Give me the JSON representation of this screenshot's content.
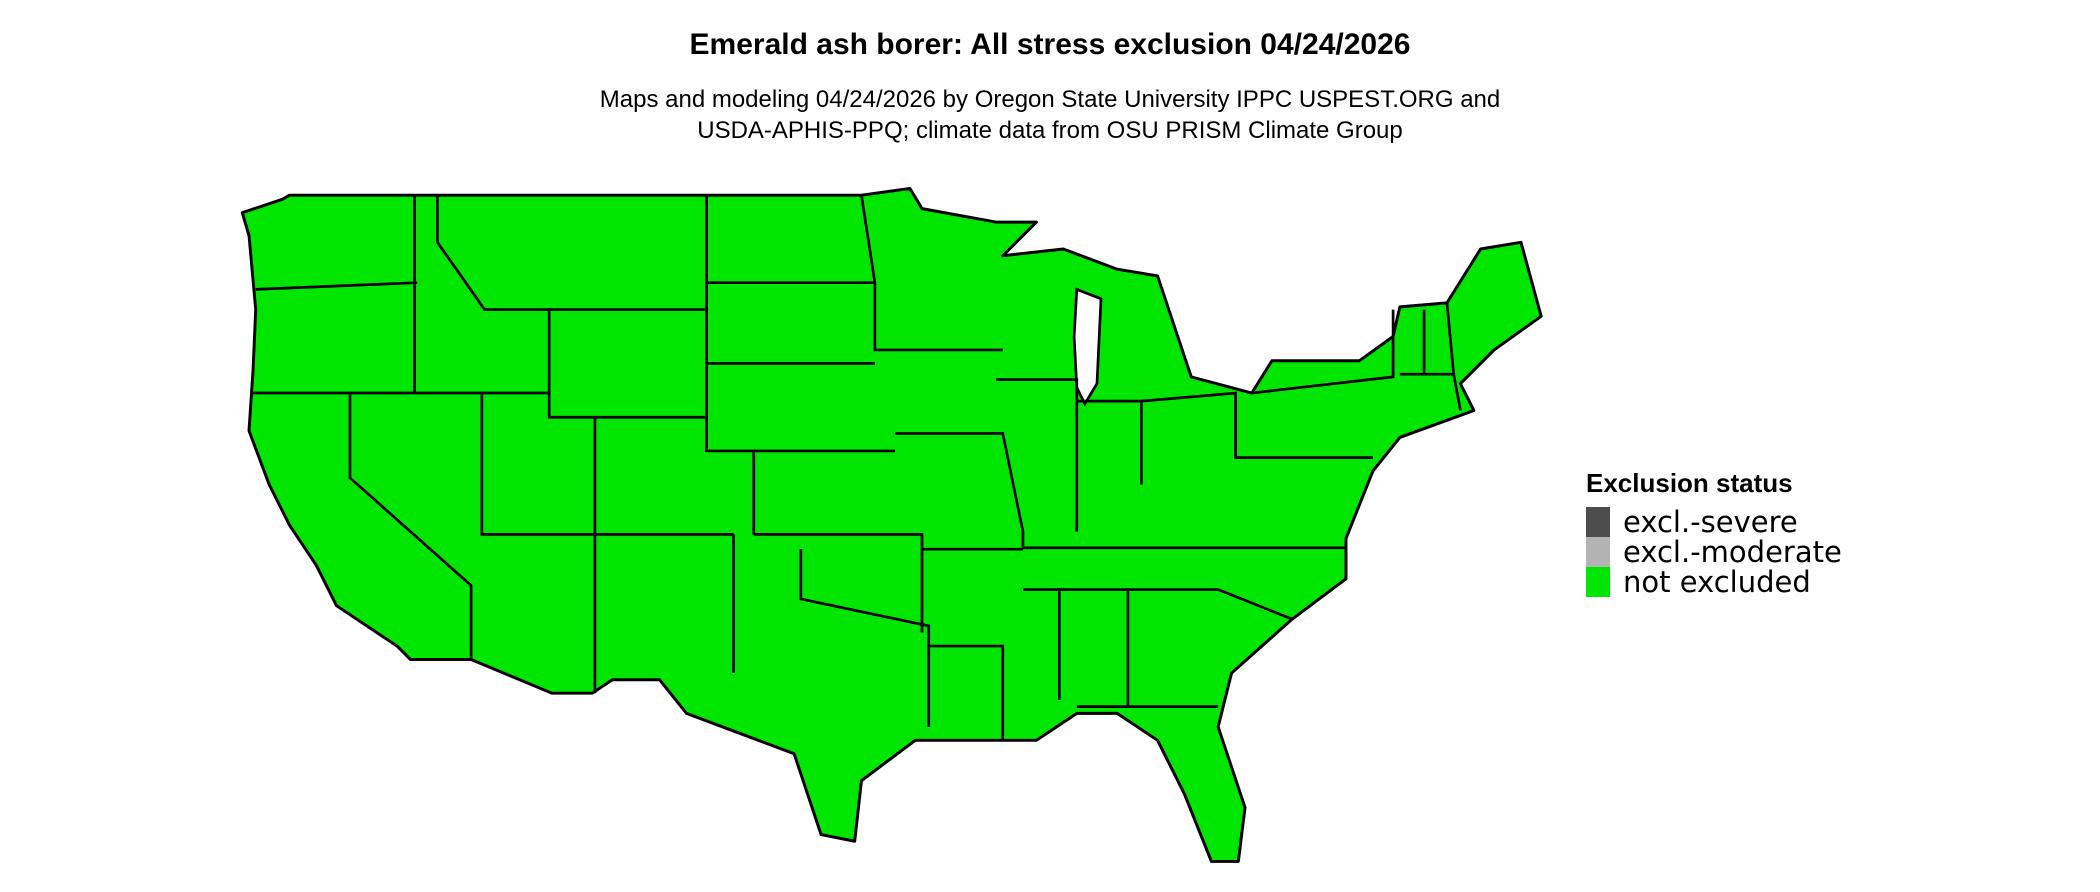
{
  "title": "Emerald ash borer: All stress exclusion 04/24/2026",
  "subtitle": {
    "line1": "Maps and modeling 04/24/2026 by Oregon State University IPPC USPEST.ORG and",
    "line2": "USDA-APHIS-PPQ; climate data from OSU PRISM Climate Group"
  },
  "map": {
    "region": "Contiguous United States",
    "fill_status": "not excluded",
    "fill_color": "#00e600",
    "border_color": "#000000"
  },
  "legend": {
    "title": "Exclusion status",
    "items": [
      {
        "label": "excl.-severe",
        "color": "#4d4d4d"
      },
      {
        "label": "excl.-moderate",
        "color": "#b3b3b3"
      },
      {
        "label": "not excluded",
        "color": "#00e600"
      }
    ]
  }
}
